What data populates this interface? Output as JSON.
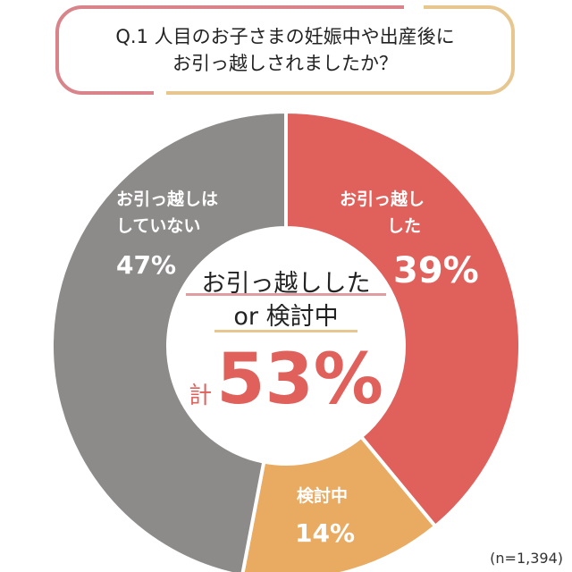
{
  "title": {
    "line1": "Q.1 人目のお子さまの妊娠中や出産後に",
    "line2": "お引っ越しされましたか？"
  },
  "colors": {
    "moved": "#e0605b",
    "considering": "#e9aa62",
    "not_moved": "#8c8b8a",
    "title_left": "#d9838a",
    "title_right": "#e8c690"
  },
  "chart_data": {
    "type": "pie",
    "donut": true,
    "start": "top, clockwise",
    "slices": [
      {
        "label_line1": "お引っ越し",
        "label_line2": "した",
        "value": 39,
        "value_label": "39%",
        "color": "#e0605b"
      },
      {
        "label_line1": "検討中",
        "label_line2": "",
        "value": 14,
        "value_label": "14%",
        "color": "#e9aa62"
      },
      {
        "label_line1": "お引っ越しは",
        "label_line2": "していない",
        "value": 47,
        "value_label": "47%",
        "color": "#8c8b8a"
      }
    ]
  },
  "center": {
    "line1": "お引っ越しした",
    "line2": "or 検討中",
    "prefix": "計",
    "total": "53%"
  },
  "note": "(n=1,394)"
}
